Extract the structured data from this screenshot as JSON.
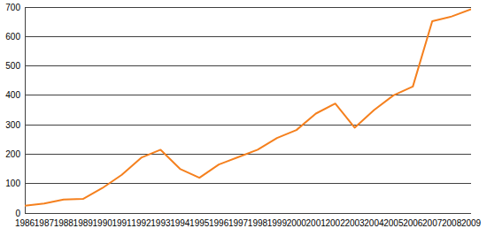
{
  "chart_data": {
    "type": "line",
    "categories": [
      "1986",
      "1987",
      "1988",
      "1989",
      "1990",
      "1991",
      "1992",
      "1993",
      "1994",
      "1995",
      "1996",
      "1997",
      "1998",
      "1999",
      "2000",
      "2001",
      "2002",
      "2003",
      "2004",
      "2005",
      "2006",
      "2007",
      "2008",
      "2009"
    ],
    "values": [
      25,
      32,
      46,
      48,
      85,
      130,
      188,
      215,
      150,
      120,
      165,
      190,
      215,
      255,
      282,
      338,
      372,
      290,
      350,
      400,
      430,
      652,
      668,
      693
    ],
    "color": "#f5801e",
    "ylim": [
      0,
      700
    ],
    "yticks": [
      0,
      100,
      200,
      300,
      400,
      500,
      600,
      700
    ],
    "grid": true
  }
}
